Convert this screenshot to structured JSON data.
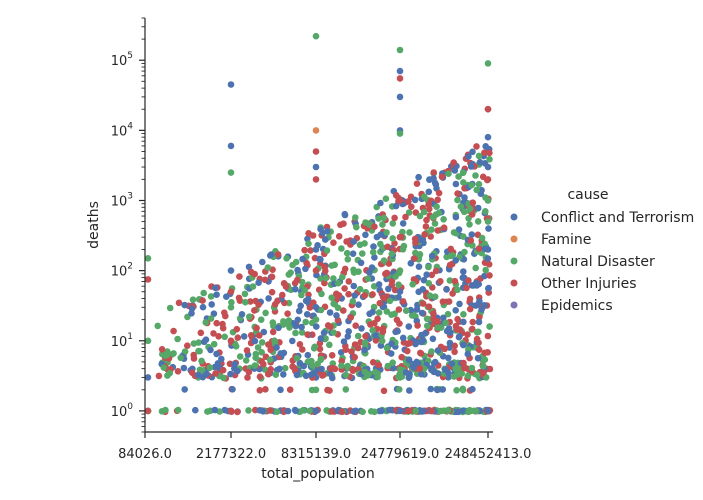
{
  "chart_data": {
    "type": "scatter",
    "title": "",
    "xlabel": "total_population",
    "ylabel": "deaths",
    "x_scale": "categorical (total_population values in sorted order)",
    "x_tick_labels": [
      "84026.0",
      "2177322.0",
      "8315139.0",
      "24779619.0",
      "248452413.0"
    ],
    "y_scale": "log",
    "ylim": [
      0.5,
      400000
    ],
    "y_ticks": [
      1,
      10,
      100,
      1000,
      10000,
      100000
    ],
    "y_tick_labels": [
      "10^0",
      "10^1",
      "10^2",
      "10^3",
      "10^4",
      "10^5"
    ],
    "grid": false,
    "legend_title": "cause",
    "legend_position": "right",
    "series": [
      {
        "name": "Conflict and Terrorism",
        "color": "#4c72b0",
        "points": [
          [
            84026,
            1
          ],
          [
            2177322,
            1
          ],
          [
            8315139,
            1
          ],
          [
            24779619,
            1
          ],
          [
            248452413,
            1
          ],
          [
            84026,
            3
          ],
          [
            2177322,
            10
          ],
          [
            8315139,
            30
          ],
          [
            24779619,
            300
          ],
          [
            248452413,
            3000
          ],
          [
            2177322,
            6000
          ],
          [
            2177322,
            45000
          ],
          [
            8315139,
            3000
          ],
          [
            24779619,
            70000
          ],
          [
            24779619,
            30000
          ],
          [
            24779619,
            10000
          ],
          [
            248452413,
            20000
          ],
          [
            248452413,
            8000
          ],
          [
            8315139,
            200
          ],
          [
            24779619,
            50
          ],
          [
            2177322,
            100
          ],
          [
            248452413,
            200
          ]
        ]
      },
      {
        "name": "Famine",
        "color": "#dd8452",
        "points": [
          [
            8315139,
            10000
          ]
        ]
      },
      {
        "name": "Natural Disaster",
        "color": "#55a868",
        "points": [
          [
            84026,
            1
          ],
          [
            84026,
            10
          ],
          [
            84026,
            150
          ],
          [
            2177322,
            1
          ],
          [
            2177322,
            2500
          ],
          [
            8315139,
            220000
          ],
          [
            24779619,
            140000
          ],
          [
            248452413,
            90000
          ],
          [
            24779619,
            9000
          ],
          [
            8315139,
            20
          ],
          [
            24779619,
            100
          ],
          [
            248452413,
            500
          ],
          [
            2177322,
            30
          ],
          [
            8315139,
            2
          ],
          [
            24779619,
            3
          ],
          [
            248452413,
            1000
          ]
        ]
      },
      {
        "name": "Other Injuries",
        "color": "#c44e52",
        "points": [
          [
            84026,
            75
          ],
          [
            84026,
            1
          ],
          [
            2177322,
            50
          ],
          [
            2177322,
            1
          ],
          [
            8315139,
            5000
          ],
          [
            8315139,
            2000
          ],
          [
            24779619,
            55000
          ],
          [
            248452413,
            20000
          ],
          [
            24779619,
            300
          ],
          [
            8315139,
            100
          ],
          [
            2177322,
            10
          ],
          [
            248452413,
            2000
          ],
          [
            24779619,
            1000
          ]
        ]
      },
      {
        "name": "Epidemics",
        "color": "#8172b3",
        "points": []
      }
    ]
  }
}
